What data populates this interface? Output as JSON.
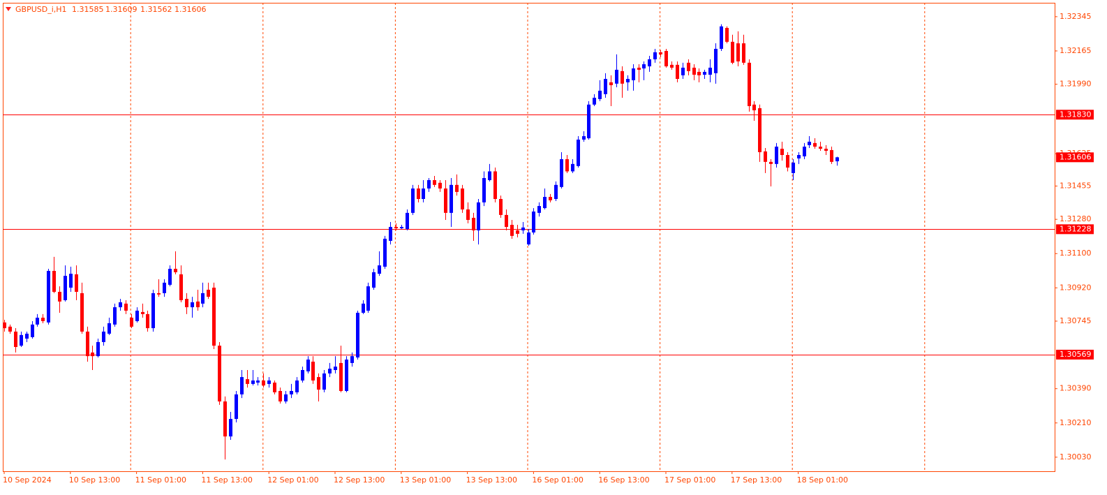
{
  "chart_data": {
    "type": "candlestick",
    "symbol": "GBPUSD_i,H1",
    "categories": [
      "10 Sep 2024",
      null,
      null,
      null,
      null,
      null,
      null,
      null,
      null,
      null,
      null,
      null,
      "10 Sep 13:00",
      null,
      null,
      null,
      null,
      null,
      null,
      null,
      null,
      null,
      null,
      null,
      "11 Sep 01:00",
      null,
      null,
      null,
      null,
      null,
      null,
      null,
      null,
      null,
      null,
      null,
      "11 Sep 13:00",
      null,
      null,
      null,
      null,
      null,
      null,
      null,
      null,
      null,
      null,
      null,
      "12 Sep 01:00",
      null,
      null,
      null,
      null,
      null,
      null,
      null,
      null,
      null,
      null,
      null,
      "12 Sep 13:00",
      null,
      null,
      null,
      null,
      null,
      null,
      null,
      null,
      null,
      null,
      null,
      "13 Sep 01:00",
      null,
      null,
      null,
      null,
      null,
      null,
      null,
      null,
      null,
      null,
      null,
      "13 Sep 13:00",
      null,
      null,
      null,
      null,
      null,
      null,
      null,
      null,
      null,
      null,
      null,
      "16 Sep 01:00",
      null,
      null,
      null,
      null,
      null,
      null,
      null,
      null,
      null,
      null,
      null,
      "16 Sep 13:00",
      null,
      null,
      null,
      null,
      null,
      null,
      null,
      null,
      null,
      null,
      null,
      "17 Sep 01:00",
      null,
      null,
      null,
      null,
      null,
      null,
      null,
      null,
      null,
      null,
      null,
      "17 Sep 13:00",
      null,
      null,
      null,
      null,
      null,
      null,
      null,
      null,
      null,
      null,
      null,
      "18 Sep 01:00",
      null,
      null,
      null,
      null,
      null,
      null,
      null
    ],
    "open": [
      1.30738,
      1.30716,
      1.3069,
      1.30616,
      1.30653,
      1.30661,
      1.30727,
      1.30763,
      1.30738,
      1.31009,
      1.30899,
      1.30855,
      1.30921,
      1.30991,
      1.30892,
      1.3069,
      1.3058,
      1.30561,
      1.30635,
      1.30679,
      1.30727,
      1.30818,
      1.30837,
      1.30763,
      1.30745,
      1.30793,
      1.30782,
      1.30708,
      1.30892,
      1.30892,
      1.30936,
      1.3102,
      1.30991,
      1.30862,
      1.30818,
      1.30848,
      1.30837,
      1.3091,
      1.30921,
      1.30616,
      1.30323,
      1.30139,
      1.30231,
      1.3036,
      1.3044,
      1.30415,
      1.30422,
      1.30433,
      1.30415,
      1.30422,
      1.30378,
      1.30323,
      1.3036,
      1.30371,
      1.30433,
      1.30481,
      1.30532,
      1.30451,
      1.30385,
      1.3047,
      1.30488,
      1.30525,
      1.30378,
      1.30525,
      1.30554,
      1.30789,
      1.308,
      1.30921,
      1.30994,
      1.31031,
      1.31167,
      1.3124,
      1.31233,
      1.31229,
      1.31314,
      1.31442,
      1.31387,
      1.31442,
      1.31486,
      1.31472,
      1.31442,
      1.31314,
      1.31461,
      1.31442,
      1.31332,
      1.31288,
      1.31222,
      1.31369,
      1.31486,
      1.31532,
      1.31387,
      1.31303,
      1.31251,
      1.31222,
      1.31222,
      1.31148,
      1.31211,
      1.31314,
      1.31339,
      1.31398,
      1.31387,
      1.3145,
      1.31596,
      1.31532,
      1.3156,
      1.31699,
      1.31706,
      1.31883,
      1.31912,
      1.31938,
      1.32,
      1.31993,
      1.32059,
      1.32,
      1.32011,
      1.32077,
      1.32073,
      1.32084,
      1.32121,
      1.32158,
      1.32165,
      1.32092,
      1.32092,
      1.32037,
      1.32103,
      1.32077,
      1.32055,
      1.3204,
      1.3204,
      1.32048,
      1.32176,
      1.32286,
      1.32213,
      1.32205,
      1.32205,
      1.32103,
      1.31883,
      1.31864,
      1.31637,
      1.31582,
      1.31571,
      1.31651,
      1.31618,
      1.31523,
      1.316,
      1.31611,
      1.3167,
      1.31681,
      1.31662,
      1.31651,
      1.31644,
      1.31585
    ],
    "high": [
      1.30752,
      1.30727,
      1.30708,
      1.3069,
      1.3069,
      1.30745,
      1.30782,
      1.30782,
      1.3102,
      1.31083,
      1.30928,
      1.31038,
      1.31031,
      1.31038,
      1.30947,
      1.30716,
      1.30616,
      1.30653,
      1.30716,
      1.30763,
      1.30837,
      1.30862,
      1.30855,
      1.30782,
      1.30818,
      1.30837,
      1.308,
      1.3091,
      1.30965,
      1.30965,
      1.31038,
      1.31112,
      1.31038,
      1.30892,
      1.30873,
      1.3091,
      1.30947,
      1.30947,
      1.30947,
      1.30635,
      1.30349,
      1.30268,
      1.30378,
      1.30488,
      1.30488,
      1.30488,
      1.30451,
      1.3047,
      1.30451,
      1.30433,
      1.30396,
      1.30378,
      1.30415,
      1.30451,
      1.30506,
      1.30561,
      1.30561,
      1.3047,
      1.30488,
      1.30525,
      1.30561,
      1.30616,
      1.30561,
      1.3058,
      1.308,
      1.30855,
      1.30947,
      1.3102,
      1.31112,
      1.31193,
      1.31266,
      1.31259,
      1.31251,
      1.31332,
      1.31461,
      1.31461,
      1.31486,
      1.31497,
      1.31508,
      1.31486,
      1.31486,
      1.31497,
      1.31516,
      1.31461,
      1.31369,
      1.31314,
      1.31387,
      1.31532,
      1.31571,
      1.31552,
      1.31405,
      1.31332,
      1.31277,
      1.31251,
      1.31266,
      1.31229,
      1.31339,
      1.31369,
      1.31442,
      1.31413,
      1.31479,
      1.31633,
      1.31618,
      1.31596,
      1.31717,
      1.31743,
      1.31901,
      1.31938,
      1.32011,
      1.32048,
      1.32037,
      1.32147,
      1.32084,
      1.32037,
      1.32095,
      1.32095,
      1.3211,
      1.32139,
      1.32176,
      1.32169,
      1.32176,
      1.3211,
      1.3211,
      1.32103,
      1.32121,
      1.32095,
      1.32073,
      1.32066,
      1.32121,
      1.32205,
      1.32305,
      1.32294,
      1.3225,
      1.32268,
      1.3225,
      1.32121,
      1.31901,
      1.31883,
      1.31655,
      1.31596,
      1.31681,
      1.31688,
      1.31633,
      1.31596,
      1.31633,
      1.31681,
      1.31717,
      1.31706,
      1.31688,
      1.3167,
      1.31662,
      1.31609
    ],
    "low": [
      1.3069,
      1.30679,
      1.3058,
      1.30609,
      1.30635,
      1.30653,
      1.30716,
      1.30734,
      1.30727,
      1.30892,
      1.30789,
      1.30848,
      1.30899,
      1.30855,
      1.30679,
      1.30532,
      1.30488,
      1.30554,
      1.30616,
      1.30672,
      1.30716,
      1.308,
      1.30782,
      1.30708,
      1.30738,
      1.30763,
      1.3069,
      1.3069,
      1.30873,
      1.30873,
      1.30928,
      1.30991,
      1.30844,
      1.30782,
      1.30763,
      1.308,
      1.30818,
      1.30862,
      1.30598,
      1.30305,
      1.30018,
      1.30121,
      1.30213,
      1.30341,
      1.30396,
      1.30407,
      1.30407,
      1.30396,
      1.30396,
      1.3036,
      1.30312,
      1.30312,
      1.30341,
      1.3036,
      1.30422,
      1.3047,
      1.30415,
      1.30323,
      1.30371,
      1.30451,
      1.3047,
      1.30371,
      1.30371,
      1.30506,
      1.30543,
      1.30782,
      1.30789,
      1.3091,
      1.30983,
      1.3102,
      1.31148,
      1.31222,
      1.31229,
      1.31222,
      1.31303,
      1.31369,
      1.31369,
      1.31424,
      1.3145,
      1.31424,
      1.31277,
      1.3124,
      1.31405,
      1.31314,
      1.31259,
      1.31167,
      1.31148,
      1.3135,
      1.31479,
      1.31369,
      1.31288,
      1.31222,
      1.31178,
      1.31185,
      1.31204,
      1.31141,
      1.312,
      1.31295,
      1.31332,
      1.31369,
      1.31376,
      1.31442,
      1.31523,
      1.31523,
      1.31552,
      1.31688,
      1.31699,
      1.31875,
      1.31901,
      1.31919,
      1.31875,
      1.31974,
      1.31919,
      1.31956,
      1.31956,
      1.32,
      1.32011,
      1.32055,
      1.32103,
      1.32132,
      1.32077,
      1.32066,
      1.32,
      1.32018,
      1.32037,
      1.32011,
      1.32,
      1.32018,
      1.32,
      1.31993,
      1.32165,
      1.32205,
      1.32095,
      1.32084,
      1.32092,
      1.31846,
      1.31798,
      1.31582,
      1.31523,
      1.31453,
      1.31552,
      1.31589,
      1.31532,
      1.31486,
      1.31571,
      1.31596,
      1.31655,
      1.31651,
      1.3164,
      1.31618,
      1.31571,
      1.31562
    ],
    "close": [
      1.30708,
      1.3069,
      1.30609,
      1.30672,
      1.30679,
      1.30727,
      1.30763,
      1.30745,
      1.31009,
      1.30899,
      1.30848,
      1.30983,
      1.30994,
      1.30899,
      1.3069,
      1.30561,
      1.30561,
      1.30635,
      1.3069,
      1.30734,
      1.30818,
      1.30844,
      1.308,
      1.30716,
      1.308,
      1.30782,
      1.30708,
      1.30892,
      1.30885,
      1.30947,
      1.3102,
      1.31002,
      1.30855,
      1.30818,
      1.30844,
      1.30818,
      1.30892,
      1.30873,
      1.30616,
      1.30323,
      1.30139,
      1.30231,
      1.3036,
      1.30451,
      1.30415,
      1.30433,
      1.30433,
      1.30407,
      1.30433,
      1.30371,
      1.30323,
      1.3036,
      1.30378,
      1.30433,
      1.30488,
      1.30543,
      1.30433,
      1.30385,
      1.3047,
      1.30495,
      1.30506,
      1.30378,
      1.30543,
      1.30561,
      1.30789,
      1.30837,
      1.30928,
      1.31002,
      1.31038,
      1.31178,
      1.3124,
      1.31233,
      1.3124,
      1.31314,
      1.31442,
      1.31387,
      1.31442,
      1.31486,
      1.31461,
      1.31442,
      1.31314,
      1.31461,
      1.31424,
      1.31332,
      1.31277,
      1.31222,
      1.31369,
      1.31497,
      1.31532,
      1.31387,
      1.31303,
      1.3124,
      1.31193,
      1.31204,
      1.31237,
      1.31211,
      1.31321,
      1.3135,
      1.31398,
      1.3138,
      1.31461,
      1.31596,
      1.31532,
      1.31571,
      1.31699,
      1.31717,
      1.31883,
      1.31919,
      1.31956,
      1.32018,
      1.31985,
      1.32066,
      1.31993,
      1.32018,
      1.32073,
      1.32066,
      1.32095,
      1.32121,
      1.32158,
      1.32147,
      1.32084,
      1.32077,
      1.32018,
      1.32077,
      1.32059,
      1.3204,
      1.32037,
      1.32055,
      1.32077,
      1.32176,
      1.32294,
      1.32213,
      1.32103,
      1.3211,
      1.32103,
      1.31875,
      1.31853,
      1.31633,
      1.31582,
      1.31571,
      1.31662,
      1.31618,
      1.31552,
      1.31578,
      1.31618,
      1.31662,
      1.31688,
      1.31662,
      1.31651,
      1.3164,
      1.31582,
      1.31606
    ],
    "up_color": "#0000ff",
    "down_color": "#ff0000",
    "ylim": [
      1.29956,
      1.32418
    ],
    "yticks": [
      1.32345,
      1.32165,
      {
        "value": 1.3199,
        "label": "1.31990"
      },
      1.31625,
      1.31455,
      {
        "value": 1.3128,
        "label": "1.31280"
      },
      {
        "value": 1.311,
        "label": "1.31100"
      },
      {
        "value": 1.3092,
        "label": "1.30920"
      },
      1.30745,
      {
        "value": 1.3039,
        "label": "1.30390"
      },
      {
        "value": 1.3021,
        "label": "1.30210"
      },
      {
        "value": 1.3003,
        "label": "1.30030"
      }
    ],
    "levels": [
      {
        "value": 1.3183,
        "label": "1.31830"
      },
      {
        "value": 1.31228,
        "label": "1.31228"
      },
      {
        "value": 1.30569,
        "label": "1.30569"
      }
    ],
    "level_color": "#ff0000",
    "axis_color": "#ff4500",
    "grid": true
  }
}
